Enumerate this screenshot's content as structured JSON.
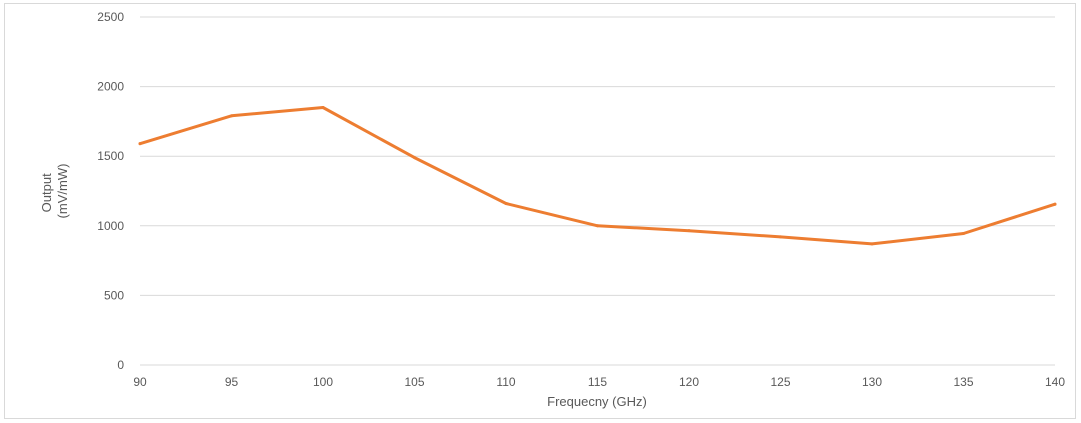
{
  "chart_data": {
    "type": "line",
    "title": "",
    "xlabel": "Frequecny (GHz)",
    "ylabel_lines": [
      "Output",
      "(mV/mW)"
    ],
    "x": [
      90,
      95,
      100,
      105,
      110,
      115,
      120,
      125,
      130,
      135,
      140
    ],
    "series": [
      {
        "values": [
          1590,
          1790,
          1850,
          1490,
          1160,
          1000,
          965,
          920,
          870,
          945,
          1155
        ],
        "color": "#ed7d31"
      }
    ],
    "xlim": [
      90,
      140
    ],
    "ylim": [
      0,
      2500
    ],
    "x_ticks": [
      "90",
      "95",
      "100",
      "105",
      "110",
      "115",
      "120",
      "125",
      "130",
      "135",
      "140"
    ],
    "y_ticks": [
      "0",
      "500",
      "1000",
      "1500",
      "2000",
      "2500"
    ],
    "grid": "horizontal",
    "gridline_color": "#d9d9d9",
    "legend": "none"
  }
}
